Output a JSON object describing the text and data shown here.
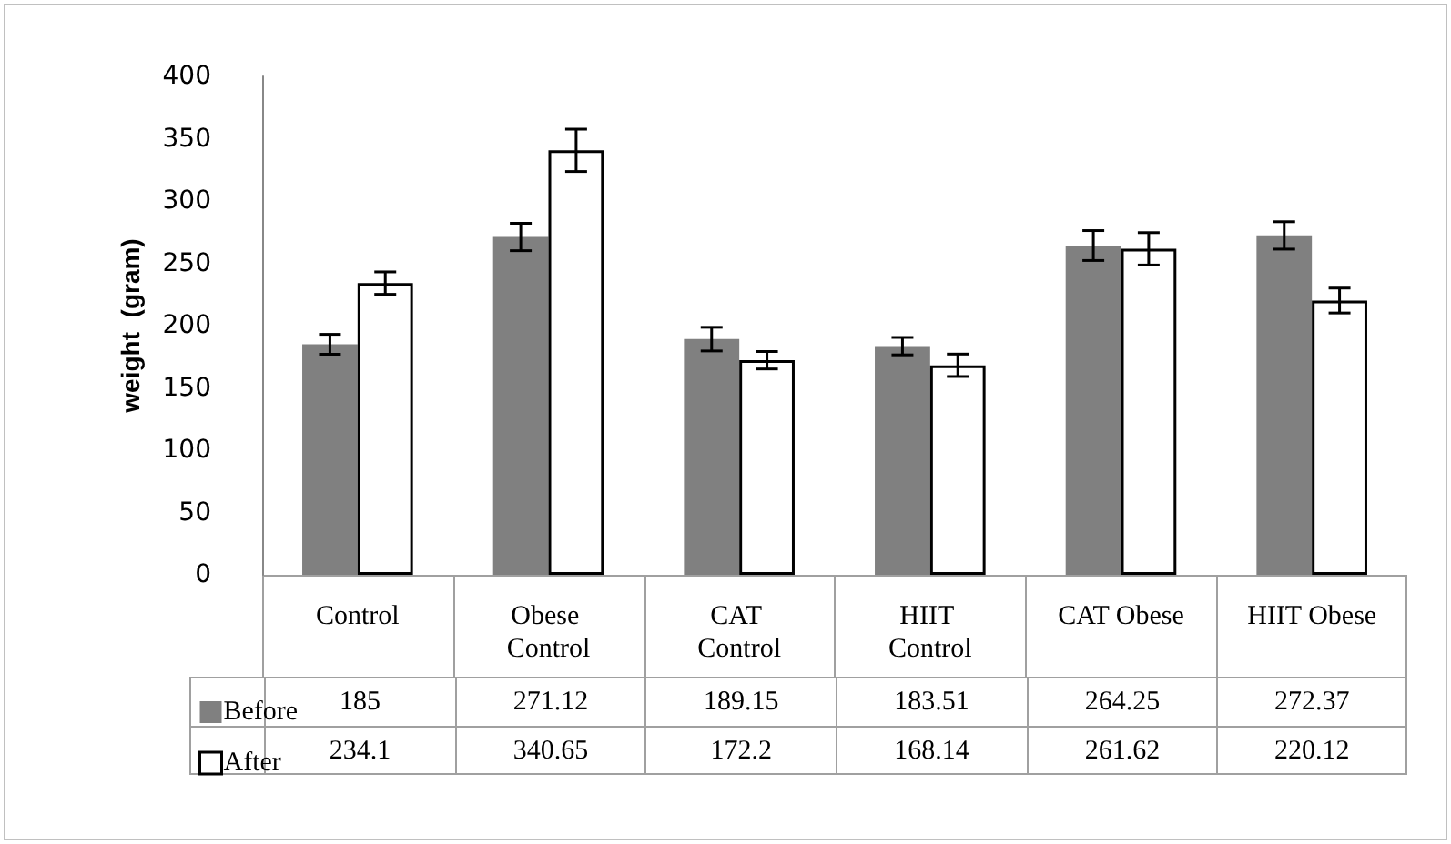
{
  "chart_data": {
    "type": "bar",
    "ylabel": "weight  (gram)",
    "categories": [
      "Control",
      "Obese Control",
      "CAT Control",
      "HIIT Control",
      "CAT Obese",
      "HIIT Obese"
    ],
    "series": [
      {
        "name": "Before",
        "color": "#808080",
        "values": [
          185,
          271.12,
          189.15,
          183.51,
          264.25,
          272.37
        ],
        "errors": [
          8,
          11,
          9.5,
          7,
          12,
          11
        ]
      },
      {
        "name": "After",
        "color": "#ffffff",
        "values": [
          234.1,
          340.65,
          172.2,
          168.14,
          261.62,
          220.12
        ],
        "errors": [
          9,
          17,
          7,
          9,
          13,
          10
        ]
      }
    ],
    "ylim": [
      0,
      400
    ],
    "yticks": [
      0,
      50,
      100,
      150,
      200,
      250,
      300,
      350,
      400
    ],
    "grid": false,
    "legend": "bottom left",
    "data_labels": true
  }
}
